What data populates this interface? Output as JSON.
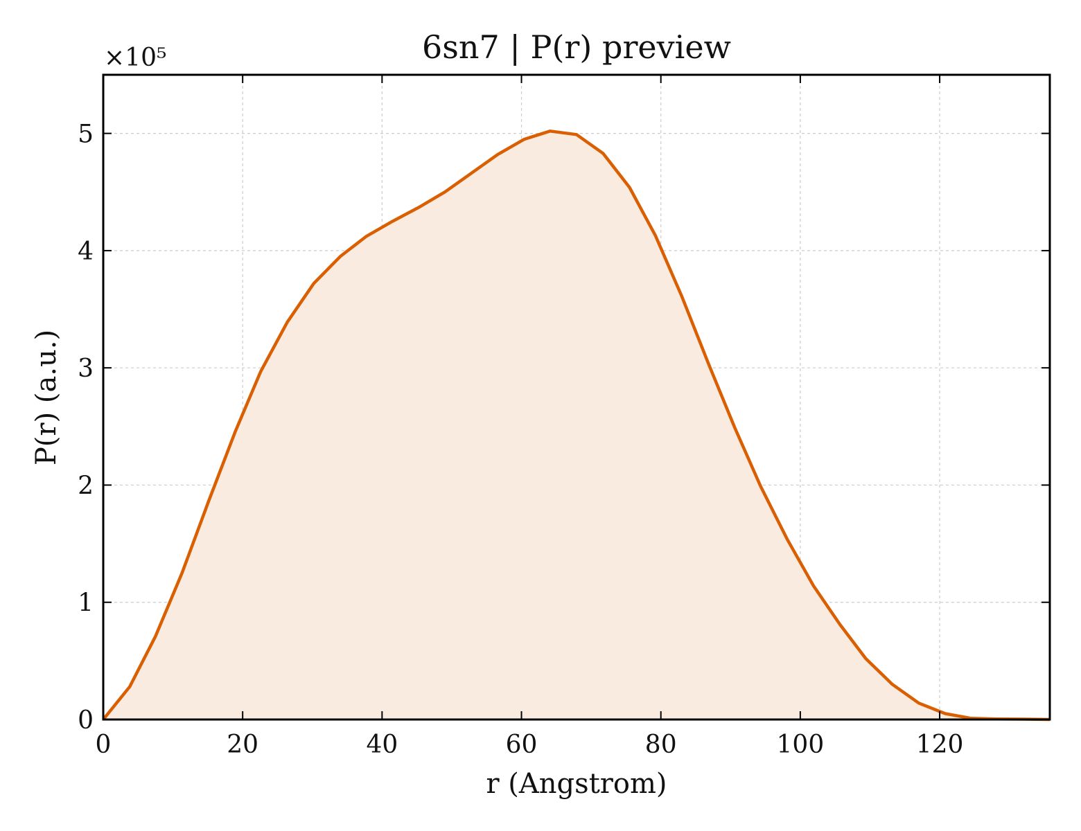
{
  "chart_data": {
    "type": "area",
    "title": "6sn7 | P(r) preview",
    "xlabel": "r (Angstrom)",
    "ylabel": "P(r) (a.u.)",
    "y_multiplier_label": "×10⁵",
    "xlim": [
      0,
      135.8
    ],
    "ylim": [
      0,
      5.5
    ],
    "x_ticks": [
      0,
      20,
      40,
      60,
      80,
      100,
      120
    ],
    "y_ticks": [
      0,
      1,
      2,
      3,
      4,
      5
    ],
    "grid": true,
    "legend": "none",
    "line_color": "#D95F02",
    "fill_color": "#F9EBE0",
    "series": [
      {
        "x": [
          0,
          3.8,
          7.5,
          11.3,
          15.1,
          18.9,
          22.6,
          26.4,
          30.2,
          34.0,
          37.7,
          41.5,
          45.3,
          49.0,
          52.8,
          56.6,
          60.4,
          64.1,
          67.9,
          71.7,
          75.5,
          79.2,
          83.0,
          86.8,
          90.6,
          94.3,
          98.1,
          101.9,
          105.7,
          109.4,
          113.2,
          117.0,
          120.8,
          124.5,
          128.3,
          132.1,
          135.8
        ],
        "y": [
          0,
          0.28,
          0.71,
          1.25,
          1.86,
          2.45,
          2.97,
          3.39,
          3.72,
          3.95,
          4.12,
          4.25,
          4.37,
          4.5,
          4.66,
          4.82,
          4.95,
          5.02,
          4.99,
          4.83,
          4.54,
          4.13,
          3.61,
          3.04,
          2.49,
          1.99,
          1.54,
          1.14,
          0.81,
          0.52,
          0.3,
          0.14,
          0.05,
          0.01,
          0.005,
          0.003,
          0
        ]
      }
    ]
  }
}
